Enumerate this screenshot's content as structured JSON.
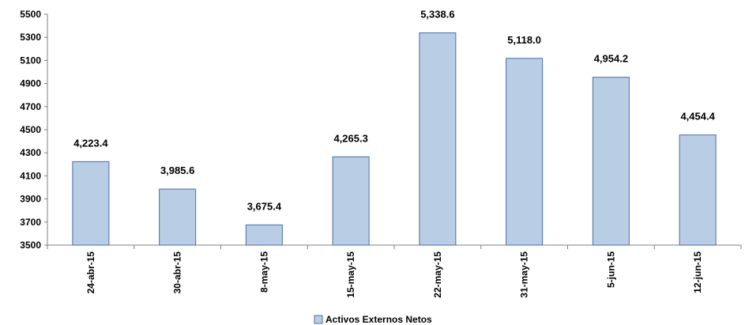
{
  "chart_data": {
    "type": "bar",
    "title": "",
    "xlabel": "",
    "ylabel": "",
    "categories": [
      "24-abr-15",
      "30-abr-15",
      "8-may-15",
      "15-may-15",
      "22-may-15",
      "31-may-15",
      "5-jun-15",
      "12-jun-15"
    ],
    "series": [
      {
        "name": "Activos Externos Netos",
        "values": [
          4223.4,
          3985.6,
          3675.4,
          4265.3,
          5338.6,
          5118.0,
          4954.2,
          4454.4
        ],
        "labels": [
          "4,223.4",
          "3,985.6",
          "3,675.4",
          "4,265.3",
          "5,338.6",
          "5,118.0",
          "4,954.2",
          "4,454.4"
        ]
      }
    ],
    "ylim": [
      3500,
      5500
    ],
    "yticks": [
      "3500",
      "3700",
      "3900",
      "4100",
      "4300",
      "4500",
      "4700",
      "4900",
      "5100",
      "5300",
      "5500"
    ],
    "grid": false,
    "legend_position": "bottom",
    "colors": {
      "bar_fill": "#b9cde5",
      "bar_stroke": "#4a6fa5",
      "axis": "#808080"
    }
  }
}
